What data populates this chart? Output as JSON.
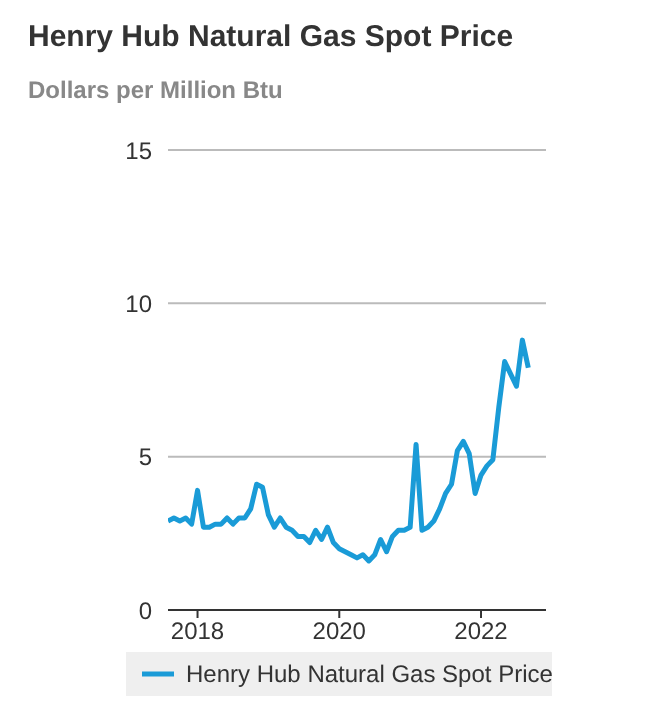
{
  "chart_data": {
    "type": "line",
    "title": "Henry Hub Natural Gas Spot Price",
    "subtitle": "Dollars per Million Btu",
    "x": [
      "2017-08",
      "2017-09",
      "2017-10",
      "2017-11",
      "2017-12",
      "2018-01",
      "2018-02",
      "2018-03",
      "2018-04",
      "2018-05",
      "2018-06",
      "2018-07",
      "2018-08",
      "2018-09",
      "2018-10",
      "2018-11",
      "2018-12",
      "2019-01",
      "2019-02",
      "2019-03",
      "2019-04",
      "2019-05",
      "2019-06",
      "2019-07",
      "2019-08",
      "2019-09",
      "2019-10",
      "2019-11",
      "2019-12",
      "2020-01",
      "2020-02",
      "2020-03",
      "2020-04",
      "2020-05",
      "2020-06",
      "2020-07",
      "2020-08",
      "2020-09",
      "2020-10",
      "2020-11",
      "2020-12",
      "2021-01",
      "2021-02",
      "2021-03",
      "2021-04",
      "2021-05",
      "2021-06",
      "2021-07",
      "2021-08",
      "2021-09",
      "2021-10",
      "2021-11",
      "2021-12",
      "2022-01",
      "2022-02",
      "2022-03",
      "2022-04",
      "2022-05",
      "2022-06",
      "2022-07",
      "2022-08",
      "2022-09"
    ],
    "series": [
      {
        "name": "Henry Hub Natural Gas Spot Price",
        "color": "#1a9bd7",
        "values": [
          2.9,
          3.0,
          2.9,
          3.0,
          2.8,
          3.9,
          2.7,
          2.7,
          2.8,
          2.8,
          3.0,
          2.8,
          3.0,
          3.0,
          3.3,
          4.1,
          4.0,
          3.1,
          2.7,
          3.0,
          2.7,
          2.6,
          2.4,
          2.4,
          2.2,
          2.6,
          2.3,
          2.7,
          2.2,
          2.0,
          1.9,
          1.8,
          1.7,
          1.8,
          1.6,
          1.8,
          2.3,
          1.9,
          2.4,
          2.6,
          2.6,
          2.7,
          5.4,
          2.6,
          2.7,
          2.9,
          3.3,
          3.8,
          4.1,
          5.2,
          5.5,
          5.1,
          3.8,
          4.4,
          4.7,
          4.9,
          6.6,
          8.1,
          7.7,
          7.3,
          8.8,
          7.9
        ]
      }
    ],
    "xlim": [
      "2017-08",
      "2022-12"
    ],
    "xticks": [
      "2018",
      "2020",
      "2022"
    ],
    "ylim": [
      0,
      15
    ],
    "yticks": [
      0,
      5,
      10,
      15
    ],
    "grid": "y",
    "legend": "bottom",
    "marker": "none",
    "line_style": "solid"
  }
}
